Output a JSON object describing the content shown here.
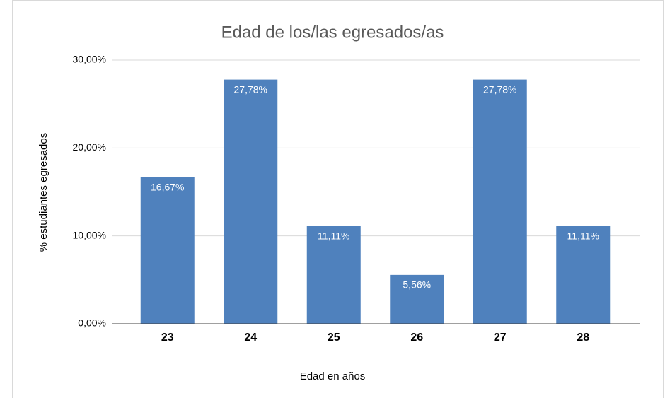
{
  "chart_data": {
    "type": "bar",
    "title": "Edad de los/las egresados/as",
    "x_label": "Edad en años",
    "y_label": "% estudiantes egresados",
    "categories": [
      "23",
      "24",
      "25",
      "26",
      "27",
      "28"
    ],
    "values": [
      16.67,
      27.78,
      11.11,
      5.56,
      27.78,
      11.11
    ],
    "value_labels": [
      "16,67%",
      "27,78%",
      "11,11%",
      "5,56%",
      "27,78%",
      "11,11%"
    ],
    "color": "#4f81bd",
    "ylim": [
      0,
      30
    ],
    "yticks": [
      {
        "value": 0,
        "label": "0,00%"
      },
      {
        "value": 10,
        "label": "10,00%"
      },
      {
        "value": 20,
        "label": "20,00%"
      },
      {
        "value": 30,
        "label": "30,00%"
      }
    ],
    "grid": true
  }
}
